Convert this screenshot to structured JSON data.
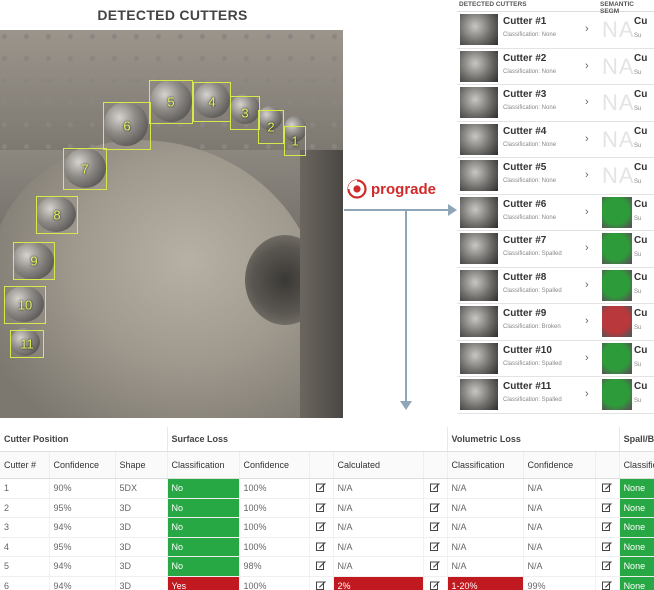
{
  "left_title": "DETECTED CUTTERS",
  "photo_boxes": [
    {
      "label": "5"
    },
    {
      "label": "4"
    },
    {
      "label": "3"
    },
    {
      "label": "2"
    },
    {
      "label": "1"
    },
    {
      "label": "6"
    },
    {
      "label": "7"
    },
    {
      "label": "8"
    },
    {
      "label": "9"
    },
    {
      "label": "10"
    },
    {
      "label": "11"
    }
  ],
  "logo": {
    "text": "prograde",
    "color": "#d02a2a"
  },
  "right_panel": {
    "header_left": "DETECTED CUTTERS",
    "header_right": "SEMANTIC SEGM",
    "rows": [
      {
        "name": "Cutter #1",
        "classification": "Classification: None",
        "seg": "NA",
        "cu": "Cu",
        "su": "Su"
      },
      {
        "name": "Cutter #2",
        "classification": "Classification: None",
        "seg": "NA",
        "cu": "Cu",
        "su": "Su"
      },
      {
        "name": "Cutter #3",
        "classification": "Classification: None",
        "seg": "NA",
        "cu": "Cu",
        "su": "Su"
      },
      {
        "name": "Cutter #4",
        "classification": "Classification: None",
        "seg": "NA",
        "cu": "Cu",
        "su": "Su"
      },
      {
        "name": "Cutter #5",
        "classification": "Classification: None",
        "seg": "NA",
        "cu": "Cu",
        "su": "Su"
      },
      {
        "name": "Cutter #6",
        "classification": "Classification: None",
        "seg": "",
        "cu": "Cu",
        "su": "Su"
      },
      {
        "name": "Cutter #7",
        "classification": "Classification: Spalled",
        "seg": "",
        "cu": "Cu",
        "su": "Su"
      },
      {
        "name": "Cutter #8",
        "classification": "Classification: Spalled",
        "seg": "",
        "cu": "Cu",
        "su": "Su"
      },
      {
        "name": "Cutter #9",
        "classification": "Classification: Broken",
        "seg": "",
        "cu": "Cu",
        "su": "Su"
      },
      {
        "name": "Cutter #10",
        "classification": "Classification: Spalled",
        "seg": "",
        "cu": "Cu",
        "su": "Su"
      },
      {
        "name": "Cutter #11",
        "classification": "Classification: Spalled",
        "seg": "",
        "cu": "Cu",
        "su": "Su"
      }
    ],
    "seg_colors": [
      "#2e9b3a",
      "#2e9b3a",
      "#2e9b3a",
      "#b8383c",
      "#2e9b3a",
      "#2e9b3a"
    ]
  },
  "table": {
    "groups": [
      "Cutter Position",
      "Surface Loss",
      "Volumetric Loss",
      "Spall/Broken"
    ],
    "columns": [
      "Cutter #",
      "Confidence",
      "Shape",
      "Classification",
      "Confidence",
      "",
      "Calculated",
      "",
      "Classification",
      "Confidence",
      "",
      "Classification"
    ],
    "rows": [
      {
        "cutter": "1",
        "conf": "90%",
        "shape": "5DX",
        "s_class": "No",
        "s_conf": "100%",
        "calc": "N/A",
        "v_class": "N/A",
        "v_conf": "N/A",
        "sp_class": "None",
        "s_state": "green",
        "c_state": "plain",
        "v_state": "plain"
      },
      {
        "cutter": "2",
        "conf": "95%",
        "shape": "3D",
        "s_class": "No",
        "s_conf": "100%",
        "calc": "N/A",
        "v_class": "N/A",
        "v_conf": "N/A",
        "sp_class": "None",
        "s_state": "green",
        "c_state": "plain",
        "v_state": "plain"
      },
      {
        "cutter": "3",
        "conf": "94%",
        "shape": "3D",
        "s_class": "No",
        "s_conf": "100%",
        "calc": "N/A",
        "v_class": "N/A",
        "v_conf": "N/A",
        "sp_class": "None",
        "s_state": "green",
        "c_state": "plain",
        "v_state": "plain"
      },
      {
        "cutter": "4",
        "conf": "95%",
        "shape": "3D",
        "s_class": "No",
        "s_conf": "100%",
        "calc": "N/A",
        "v_class": "N/A",
        "v_conf": "N/A",
        "sp_class": "None",
        "s_state": "green",
        "c_state": "plain",
        "v_state": "plain"
      },
      {
        "cutter": "5",
        "conf": "94%",
        "shape": "3D",
        "s_class": "No",
        "s_conf": "98%",
        "calc": "N/A",
        "v_class": "N/A",
        "v_conf": "N/A",
        "sp_class": "None",
        "s_state": "green",
        "c_state": "plain",
        "v_state": "plain"
      },
      {
        "cutter": "6",
        "conf": "94%",
        "shape": "3D",
        "s_class": "Yes",
        "s_conf": "100%",
        "calc": "2%",
        "v_class": "1-20%",
        "v_conf": "99%",
        "sp_class": "None",
        "s_state": "red",
        "c_state": "red",
        "v_state": "red"
      }
    ]
  }
}
